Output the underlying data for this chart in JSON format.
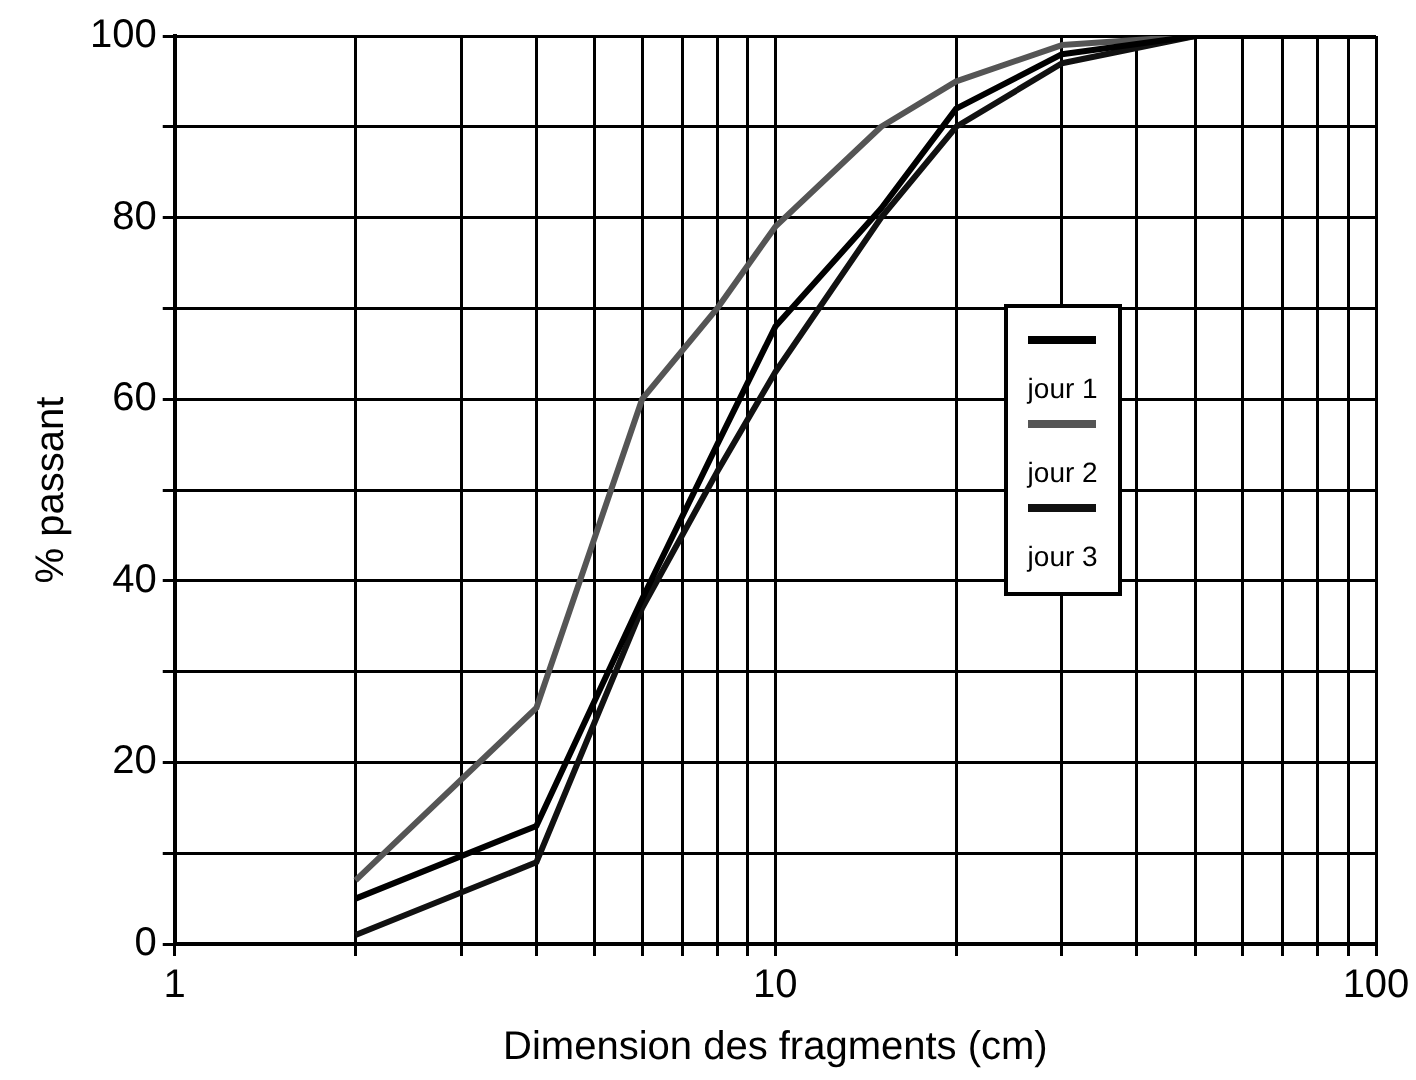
{
  "chart_data": {
    "type": "line",
    "xlabel": "Dimension des fragments (cm)",
    "ylabel": "% passant",
    "log": "x",
    "grid": true,
    "legend": "right",
    "marker": "none",
    "line_style": "solid",
    "xlim": [
      1,
      100
    ],
    "xticks": [
      1,
      {
        "value": 2,
        "label": null
      },
      {
        "value": 3,
        "label": null
      },
      {
        "value": 4,
        "label": null
      },
      {
        "value": 5,
        "label": null
      },
      {
        "value": 6,
        "label": null
      },
      {
        "value": 7,
        "label": null
      },
      {
        "value": 8,
        "label": null
      },
      {
        "value": 9,
        "label": null
      },
      10,
      {
        "value": 20,
        "label": null
      },
      {
        "value": 30,
        "label": null
      },
      {
        "value": 40,
        "label": null
      },
      {
        "value": 50,
        "label": null
      },
      {
        "value": 60,
        "label": null
      },
      {
        "value": 70,
        "label": null
      },
      {
        "value": 80,
        "label": null
      },
      {
        "value": 90,
        "label": null
      },
      100
    ],
    "ylim": [
      0,
      100
    ],
    "yticks": [
      0,
      {
        "value": 10,
        "label": null
      },
      20,
      {
        "value": 30,
        "label": null
      },
      40,
      {
        "value": 50,
        "label": null
      },
      60,
      {
        "value": 70,
        "label": null
      },
      80,
      {
        "value": 90,
        "label": null
      },
      100
    ],
    "x": [
      2,
      4,
      6,
      8,
      10,
      15,
      20,
      30,
      50,
      100
    ],
    "series": [
      {
        "name": "jour 1",
        "color": "#000000",
        "values": [
          5,
          13,
          38,
          55,
          68,
          81,
          92,
          98,
          100,
          100
        ]
      },
      {
        "name": "jour 2",
        "color": "#555555",
        "values": [
          7,
          26,
          60,
          70,
          79,
          90,
          95,
          99,
          100,
          100
        ]
      },
      {
        "name": "jour 3",
        "color": "#111111",
        "values": [
          1,
          9,
          37,
          52,
          63,
          80,
          90,
          97,
          100,
          100
        ]
      }
    ]
  }
}
